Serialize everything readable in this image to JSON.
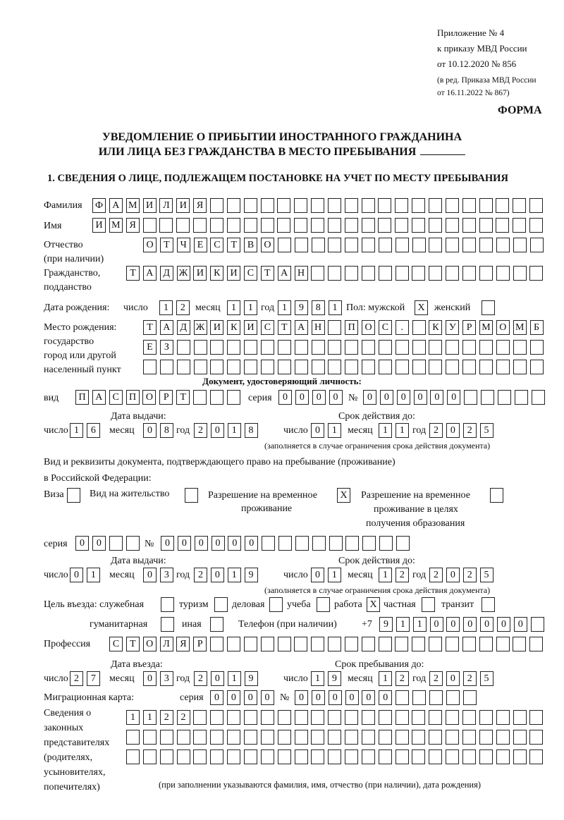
{
  "header": {
    "appendix": "Приложение № 4",
    "order": "к приказу МВД России",
    "order_date": "от 10.12.2020 № 856",
    "revision_1": "(в ред. Приказа МВД России",
    "revision_2": "от 16.11.2022 № 867)",
    "form_label": "ФОРМА"
  },
  "title": {
    "line1": "УВЕДОМЛЕНИЕ О ПРИБЫТИИ ИНОСТРАННОГО ГРАЖДАНИНА",
    "line2": "ИЛИ ЛИЦА БЕЗ ГРАЖДАНСТВА В МЕСТО ПРЕБЫВАНИЯ"
  },
  "section1": {
    "heading": "1. СВЕДЕНИЯ О ЛИЦЕ, ПОДЛЕЖАЩЕМ ПОСТАНОВКЕ НА УЧЕТ ПО МЕСТУ ПРЕБЫВАНИЯ",
    "surname": {
      "label": "Фамилия",
      "value": "ФАМИЛИЯ"
    },
    "name": {
      "label": "Имя",
      "value": "ИМЯ"
    },
    "patronymic": {
      "label": "Отчество",
      "label2": "(при наличии)",
      "value": "ОТЧЕСТВО"
    },
    "citizenship": {
      "label": "Гражданство,",
      "label2": "подданство",
      "value": "ТАДЖИКИСТАН"
    },
    "birth_date": {
      "label": "Дата рождения:",
      "day_label": "число",
      "month_label": "месяц",
      "year_label": "год",
      "day": "12",
      "month": "11",
      "year": "1981"
    },
    "sex": {
      "label": "Пол: мужской",
      "female_label": "женский",
      "male": "X",
      "female": ""
    },
    "birth_place": {
      "label1": "Место рождения:",
      "label2": "государство",
      "label3": "город или другой",
      "label4": "населенный пункт",
      "line1": "ТАДЖИКИСТАН ПОС. КУРМОМБ",
      "line2": "ЕЗ",
      "line3": ""
    },
    "id_document": {
      "heading": "Документ, удостоверяющий личность:",
      "type_label": "вид",
      "type": "ПАСПОРТ",
      "series_label": "серия",
      "series": "0000",
      "number_label": "№",
      "number": "000000",
      "issue_label": "Дата выдачи:",
      "issue_day": "16",
      "issue_month": "08",
      "issue_year": "2018",
      "valid_label": "Срок действия до:",
      "valid_day": "01",
      "valid_month": "11",
      "valid_year": "2025",
      "note": "(заполняется в случае ограничения срока действия документа)"
    },
    "stay_document": {
      "heading1": "Вид и реквизиты документа, подтверждающего право на пребывание (проживание)",
      "heading2": "в Российской Федерации:",
      "visa_label": "Виза",
      "visa": "",
      "residence_label": "Вид на жительство",
      "residence": "",
      "temp_label1": "Разрешение на временное",
      "temp_label2": "проживание",
      "temp": "X",
      "edu_label1": "Разрешение на временное",
      "edu_label2": "проживание в целях",
      "edu_label3": "получения образования",
      "edu": "",
      "series_label": "серия",
      "series": "00",
      "number_label": "№",
      "number": "000000",
      "issue_label": "Дата выдачи:",
      "issue_day": "01",
      "issue_month": "03",
      "issue_year": "2019",
      "valid_label": "Срок действия до:",
      "valid_day": "01",
      "valid_month": "12",
      "valid_year": "2025",
      "note": "(заполняется в случае ограничения срока действия документа)"
    },
    "purpose": {
      "label": "Цель въезда: служебная",
      "official": "",
      "tourism_label": "туризм",
      "tourism": "",
      "business_label": "деловая",
      "business": "",
      "study_label": "учеба",
      "study": "",
      "work_label": "работа",
      "work": "X",
      "private_label": "частная",
      "private": "",
      "transit_label": "транзит",
      "transit": "",
      "humanitarian_label": "гуманитарная",
      "humanitarian": "",
      "other_label": "иная",
      "other": ""
    },
    "phone": {
      "label": "Телефон (при наличии)",
      "prefix": "+7",
      "value": "911000000"
    },
    "profession": {
      "label": "Профессия",
      "value": "СТОЛЯР"
    },
    "entry": {
      "entry_label": "Дата въезда:",
      "day": "27",
      "month": "03",
      "year": "2019",
      "stay_label": "Срок пребывания до:",
      "stay_day": "19",
      "stay_month": "12",
      "stay_year": "2025"
    },
    "migration_card": {
      "label": "Миграционная карта:",
      "series_label": "серия",
      "series": "0000",
      "number_label": "№",
      "number": "000000"
    },
    "representatives": {
      "label1": "Сведения о",
      "label2": "законных",
      "label3": "представителях",
      "label4": "(родителях,",
      "label5": "усыновителях,",
      "label6": "попечителях)",
      "line1": "1122",
      "line2": "",
      "line3": "",
      "note": "(при заполнении указываются фамилия, имя, отчество (при наличии), дата рождения)"
    },
    "common": {
      "day": "число",
      "month": "месяц",
      "year": "год"
    }
  }
}
